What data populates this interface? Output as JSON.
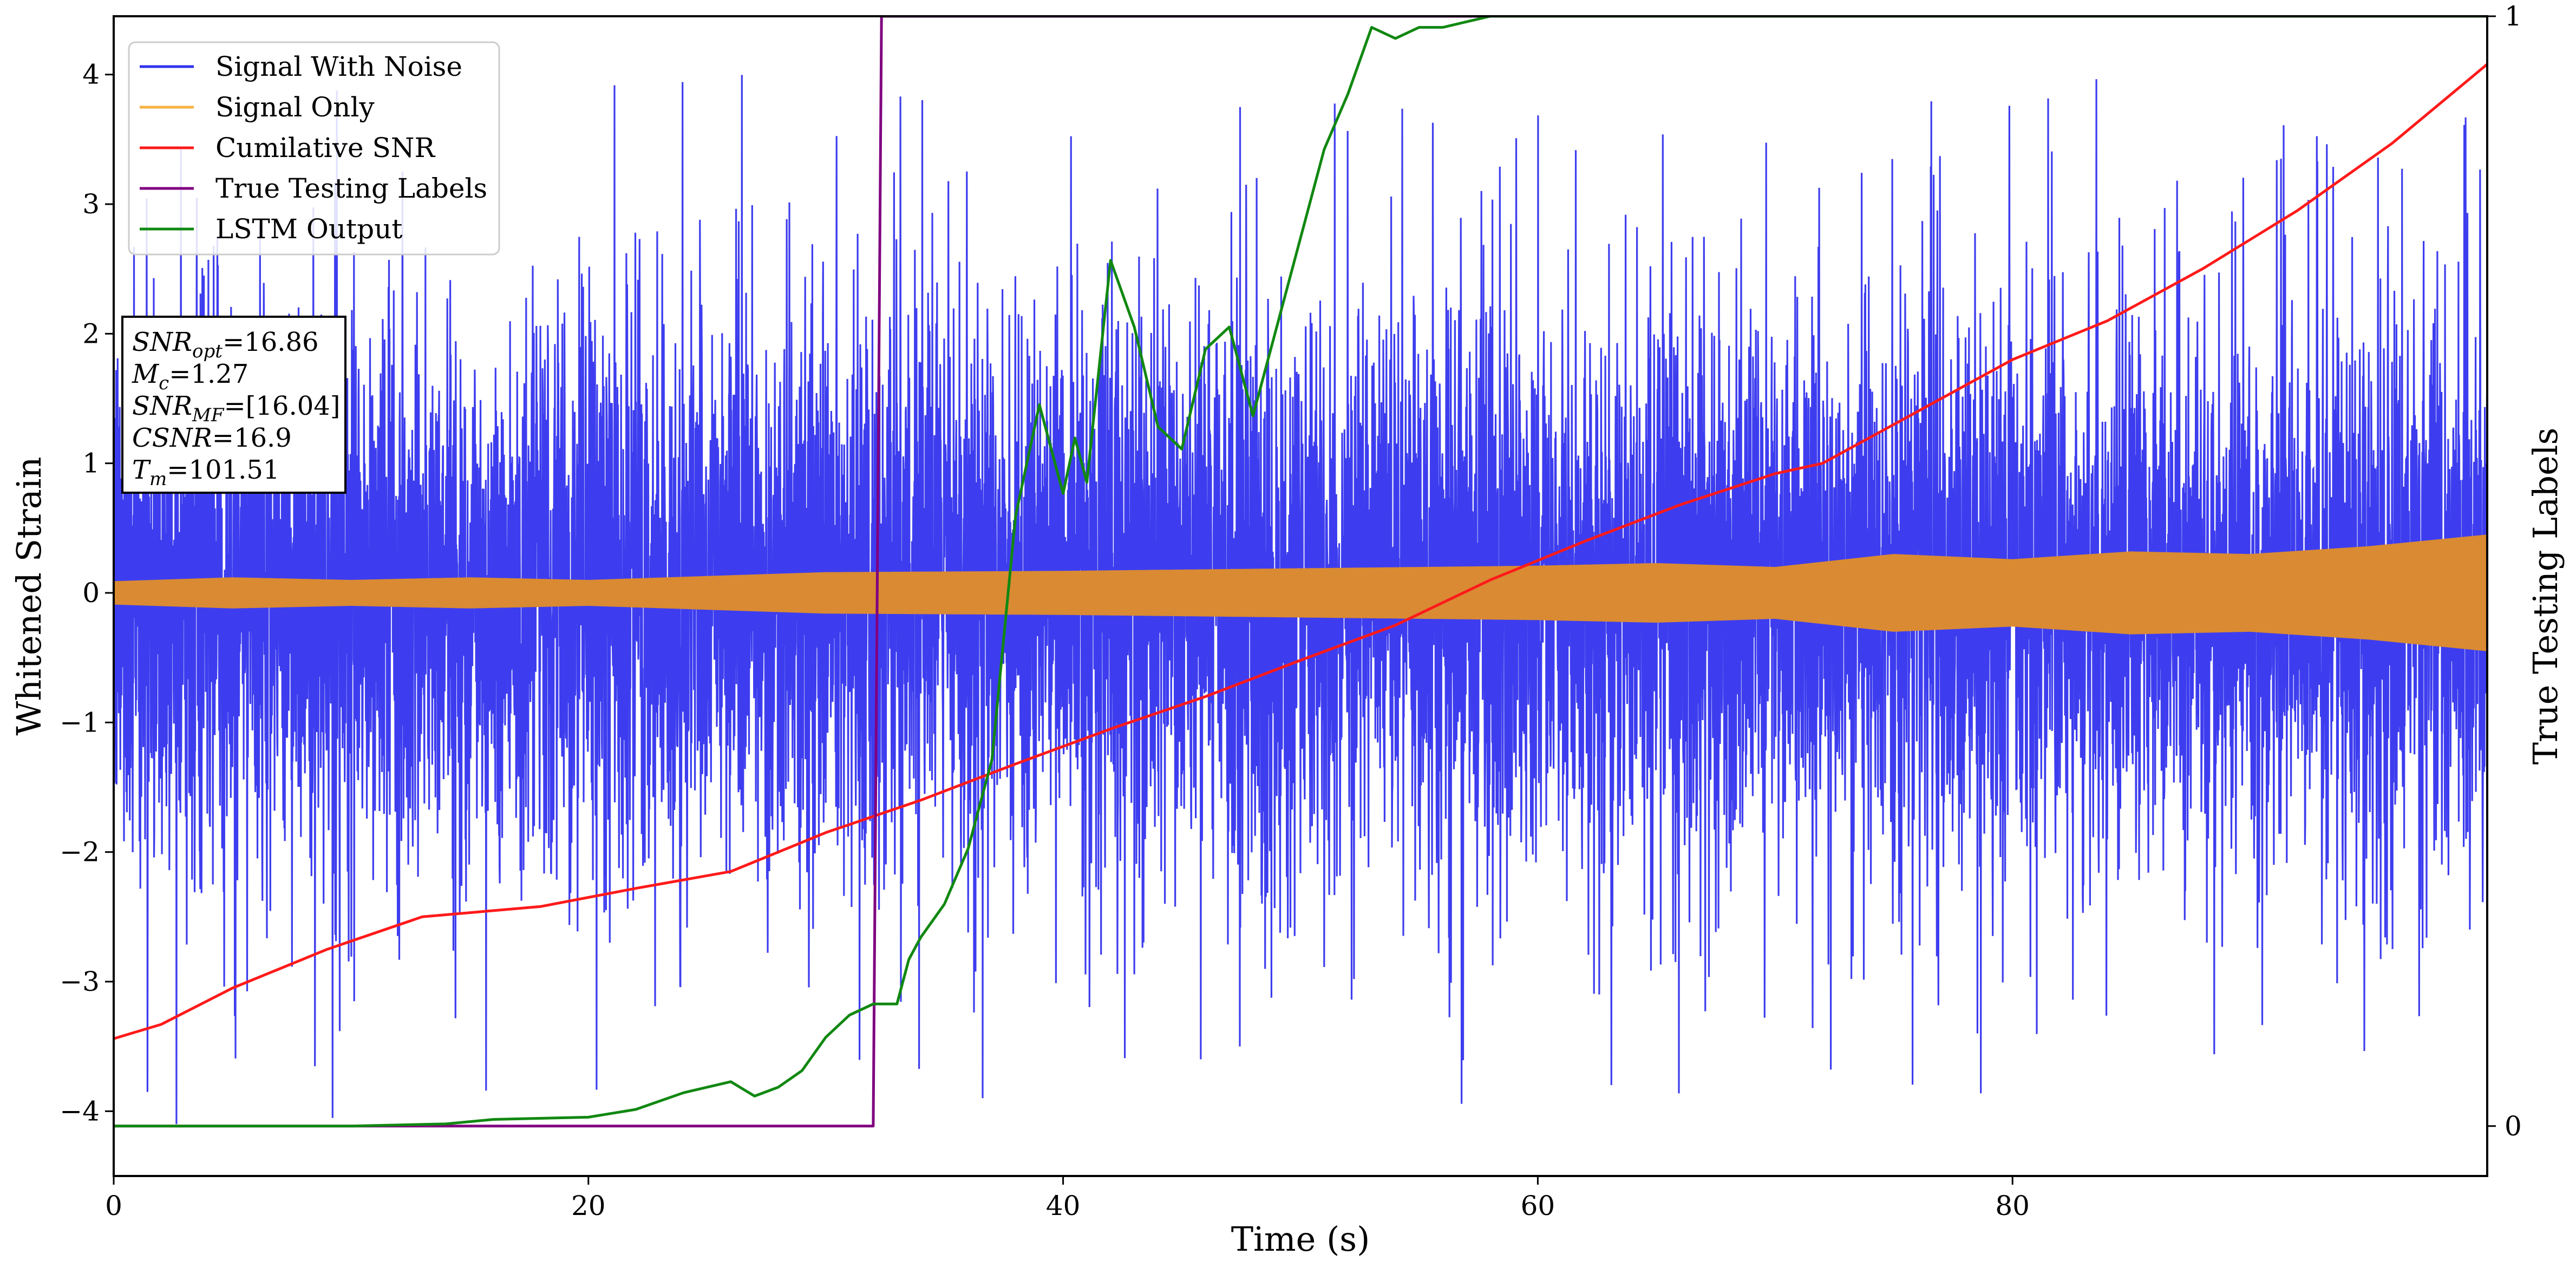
{
  "chart_data": {
    "type": "line",
    "xlabel": "Time (s)",
    "ylabel": "Whitened Strain",
    "y2label": "True Testing Labels",
    "xlim": [
      0,
      100
    ],
    "ylim": [
      -4.5,
      4.45
    ],
    "y2lim": [
      -0.045,
      1.0
    ],
    "x_ticks": [
      0,
      20,
      40,
      60,
      80
    ],
    "y_ticks": [
      -4,
      -3,
      -2,
      -1,
      0,
      1,
      2,
      3,
      4
    ],
    "y2_ticks": [
      0,
      1
    ],
    "grid": false,
    "legend": {
      "placement": "top-left",
      "entries": [
        {
          "label": "Signal With Noise",
          "color": "#3333ee"
        },
        {
          "label": "Signal Only",
          "color": "#f5b342"
        },
        {
          "label": "Cumilative SNR",
          "color": "#ff1a1a"
        },
        {
          "label": "True Testing Labels",
          "color": "#800080"
        },
        {
          "label": "LSTM Output",
          "color": "#118811"
        }
      ]
    },
    "annotation": {
      "lines": [
        {
          "var": "SNR",
          "sub": "opt",
          "value": "=16.86"
        },
        {
          "var": "M",
          "sub": "c",
          "value": "=1.27"
        },
        {
          "var": "SNR",
          "sub": "MF",
          "value": "=[16.04]"
        },
        {
          "var": "CSNR",
          "sub": "",
          "value": "=16.9"
        },
        {
          "var": "T",
          "sub": "m",
          "value": "=101.51"
        }
      ]
    },
    "series": [
      {
        "name": "Signal With Noise",
        "axis": "left",
        "color": "#3333ee",
        "description": "dense noisy time series",
        "amplitude_range": [
          -4.1,
          4.0
        ]
      },
      {
        "name": "Signal Only",
        "axis": "left",
        "color": "#f5b342",
        "envelope": {
          "x": [
            0,
            5,
            10,
            15,
            20,
            25,
            30,
            40,
            50,
            60,
            65,
            70,
            75,
            80,
            85,
            90,
            95,
            100
          ],
          "amplitude": [
            0.09,
            0.12,
            0.1,
            0.12,
            0.1,
            0.13,
            0.16,
            0.17,
            0.19,
            0.21,
            0.23,
            0.2,
            0.3,
            0.26,
            0.32,
            0.3,
            0.36,
            0.45
          ]
        }
      },
      {
        "name": "Cumilative SNR",
        "axis": "left",
        "color": "#ff1a1a",
        "x": [
          0,
          2,
          5,
          9,
          13,
          18,
          22,
          26,
          30,
          34,
          38,
          42,
          46,
          50,
          54,
          58,
          62,
          66,
          70,
          72,
          76,
          80,
          84,
          88,
          92,
          96,
          100
        ],
        "y": [
          -3.44,
          -3.33,
          -3.05,
          -2.75,
          -2.5,
          -2.42,
          -2.28,
          -2.15,
          -1.85,
          -1.6,
          -1.32,
          -1.05,
          -0.8,
          -0.52,
          -0.25,
          0.1,
          0.4,
          0.68,
          0.92,
          1.0,
          1.4,
          1.8,
          2.1,
          2.5,
          2.95,
          3.47,
          4.08
        ]
      },
      {
        "name": "True Testing Labels",
        "axis": "right",
        "color": "#800080",
        "x": [
          0,
          32.0,
          32.35,
          100
        ],
        "y": [
          0,
          0,
          1,
          1
        ]
      },
      {
        "name": "LSTM Output",
        "axis": "right",
        "color": "#118811",
        "x": [
          0,
          10,
          14,
          16,
          20,
          22,
          24,
          26,
          27,
          28,
          29,
          30,
          31,
          32,
          33,
          33.5,
          34,
          35,
          36,
          37,
          38,
          39,
          40,
          40.5,
          41,
          42,
          43,
          44,
          45,
          46,
          47,
          48,
          49,
          50,
          51,
          52,
          53,
          54,
          55,
          56,
          57,
          58,
          60,
          62,
          66,
          100
        ],
        "y": [
          0,
          0,
          0.002,
          0.006,
          0.008,
          0.015,
          0.03,
          0.04,
          0.027,
          0.035,
          0.05,
          0.08,
          0.1,
          0.11,
          0.11,
          0.15,
          0.17,
          0.2,
          0.25,
          0.33,
          0.55,
          0.65,
          0.57,
          0.62,
          0.58,
          0.78,
          0.72,
          0.63,
          0.61,
          0.7,
          0.72,
          0.64,
          0.72,
          0.8,
          0.88,
          0.93,
          0.99,
          0.98,
          0.99,
          0.99,
          0.995,
          1.0,
          1.0,
          1.0,
          1.0,
          1.0
        ]
      }
    ]
  }
}
